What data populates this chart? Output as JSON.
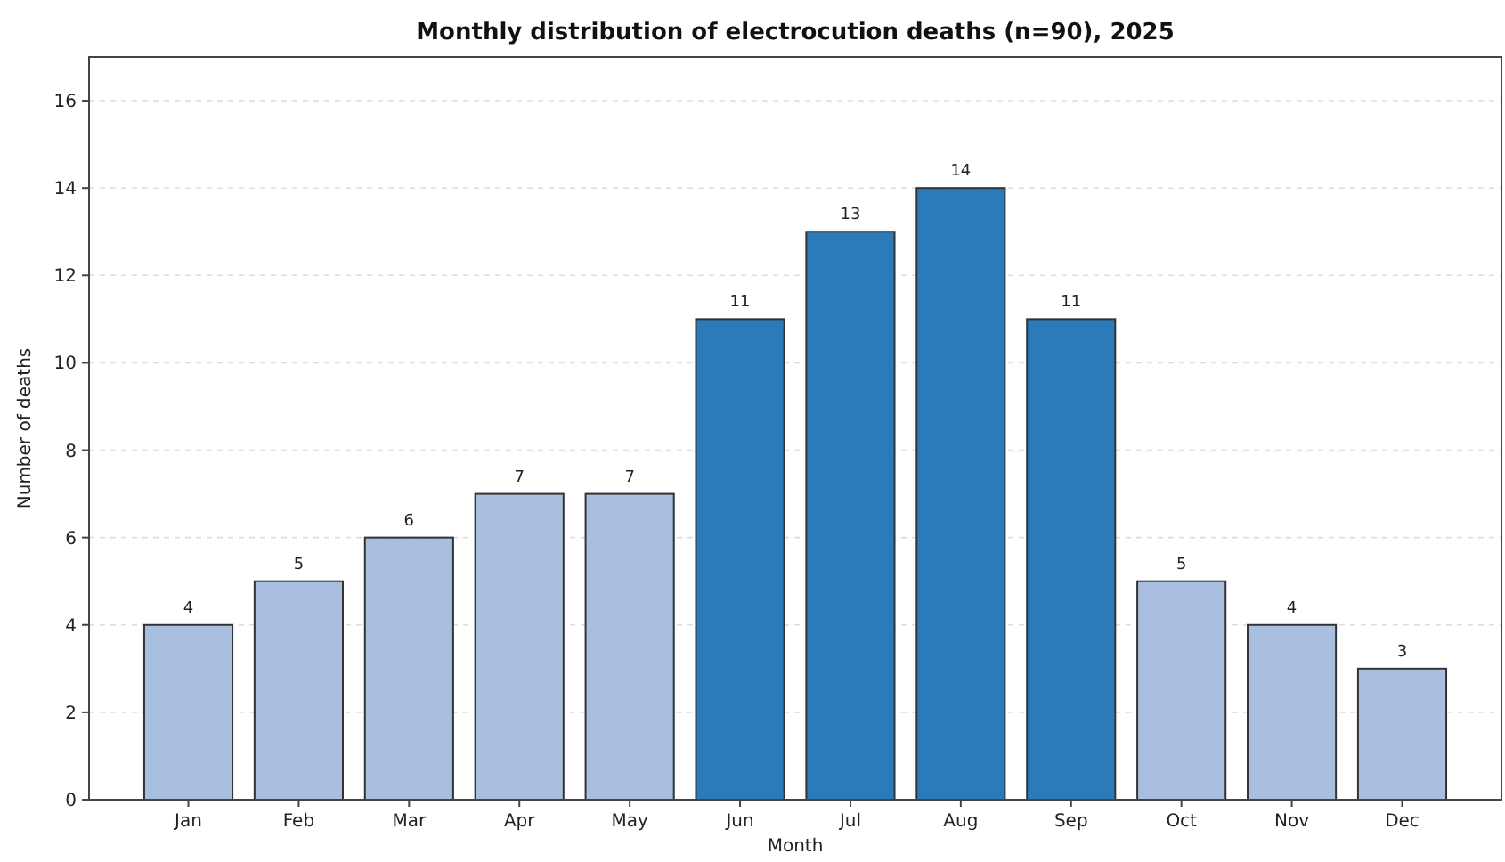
{
  "chart_data": {
    "type": "bar",
    "title": "Monthly distribution of electrocution deaths (n=90), 2025",
    "xlabel": "Month",
    "ylabel": "Number of deaths",
    "categories": [
      "Jan",
      "Feb",
      "Mar",
      "Apr",
      "May",
      "Jun",
      "Jul",
      "Aug",
      "Sep",
      "Oct",
      "Nov",
      "Dec"
    ],
    "values": [
      4,
      5,
      6,
      7,
      7,
      11,
      13,
      14,
      11,
      5,
      4,
      3
    ],
    "colors": [
      "#a9bfdf",
      "#a9bfdf",
      "#a9bfdf",
      "#a9bfdf",
      "#a9bfdf",
      "#2b7bba",
      "#2b7bba",
      "#2b7bba",
      "#2b7bba",
      "#a9bfdf",
      "#a9bfdf",
      "#a9bfdf"
    ],
    "ylim": [
      0,
      17
    ],
    "yticks": [
      0,
      2,
      4,
      6,
      8,
      10,
      12,
      14,
      16
    ],
    "grid": "y",
    "data_labels": true
  }
}
